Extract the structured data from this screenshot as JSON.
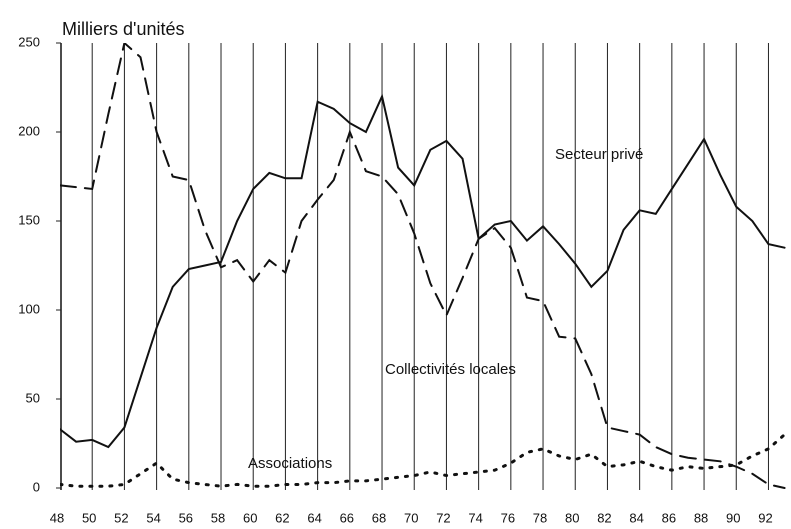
{
  "chart_data": {
    "type": "line",
    "title": "Milliers d'unités",
    "x": [
      48,
      49,
      50,
      51,
      52,
      53,
      54,
      55,
      56,
      57,
      58,
      59,
      60,
      61,
      62,
      63,
      64,
      65,
      66,
      67,
      68,
      69,
      70,
      71,
      72,
      73,
      74,
      75,
      76,
      77,
      78,
      79,
      80,
      81,
      82,
      83,
      84,
      85,
      86,
      87,
      88,
      89,
      90,
      91,
      92,
      93
    ],
    "series": [
      {
        "name": "Secteur privé",
        "color": "#111111",
        "style": "solid",
        "values": [
          33,
          26,
          27,
          23,
          34,
          62,
          90,
          113,
          123,
          125,
          127,
          150,
          168,
          177,
          174,
          174,
          217,
          213,
          205,
          200,
          220,
          180,
          170,
          190,
          195,
          185,
          140,
          148,
          150,
          139,
          147,
          137,
          126,
          113,
          122,
          145,
          156,
          154,
          168,
          182,
          196,
          176,
          158,
          150,
          137,
          135
        ]
      },
      {
        "name": "Collectivités locales",
        "color": "#111111",
        "style": "dashed",
        "values": [
          170,
          169,
          168,
          210,
          250,
          242,
          200,
          175,
          173,
          145,
          124,
          128,
          116,
          128,
          121,
          150,
          162,
          173,
          200,
          178,
          175,
          165,
          143,
          115,
          97,
          118,
          140,
          146,
          135,
          107,
          105,
          85,
          84,
          64,
          34,
          32,
          30,
          23,
          19,
          17,
          16,
          15,
          12,
          8,
          2,
          0
        ]
      },
      {
        "name": "Associations",
        "color": "#111111",
        "style": "dotted",
        "values": [
          2,
          1,
          1,
          1,
          2,
          8,
          14,
          5,
          3,
          2,
          1,
          2,
          1,
          1,
          2,
          2,
          3,
          3,
          4,
          4,
          5,
          6,
          7,
          9,
          7,
          8,
          9,
          10,
          14,
          20,
          22,
          18,
          16,
          19,
          12,
          13,
          15,
          12,
          10,
          12,
          11,
          12,
          13,
          18,
          22,
          30
        ]
      }
    ],
    "xlim": [
      48,
      93.4
    ],
    "xticks": [
      48,
      50,
      52,
      54,
      56,
      58,
      60,
      62,
      64,
      66,
      68,
      70,
      72,
      74,
      76,
      78,
      80,
      82,
      84,
      86,
      88,
      90,
      92
    ],
    "ylim": [
      0,
      250
    ],
    "yticks": [
      0,
      50,
      100,
      150,
      200,
      250
    ],
    "grid": true
  }
}
